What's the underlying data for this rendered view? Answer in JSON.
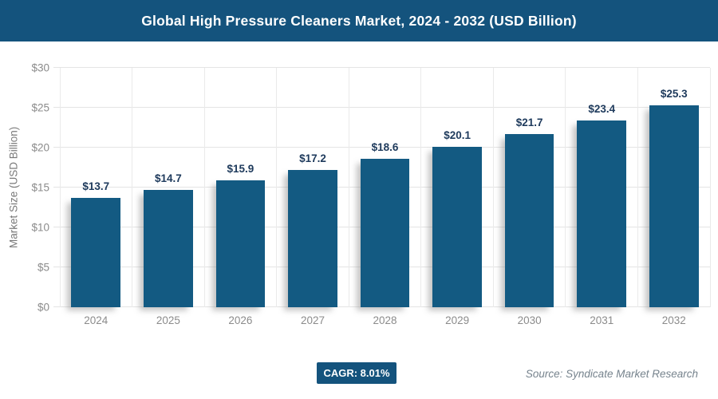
{
  "header": {
    "title": "Global High Pressure Cleaners Market, 2024 - 2032 (USD Billion)"
  },
  "chart_data": {
    "type": "bar",
    "title": "Global High Pressure Cleaners Market, 2024 - 2032 (USD Billion)",
    "categories": [
      "2024",
      "2025",
      "2026",
      "2027",
      "2028",
      "2029",
      "2030",
      "2031",
      "2032"
    ],
    "values": [
      13.7,
      14.7,
      15.9,
      17.2,
      18.6,
      20.1,
      21.7,
      23.4,
      25.3
    ],
    "value_labels": [
      "$13.7",
      "$14.7",
      "$15.9",
      "$17.2",
      "$18.6",
      "$20.1",
      "$21.7",
      "$23.4",
      "$25.3"
    ],
    "xlabel": "",
    "ylabel": "Market Size (USD Billion)",
    "ylim": [
      0,
      30
    ],
    "ytick_step": 5,
    "ytick_labels": [
      "$0",
      "$5",
      "$10",
      "$15",
      "$20",
      "$25",
      "$30"
    ],
    "grid": true,
    "legend_position": "none"
  },
  "footer": {
    "cagr_label": "CAGR: 8.01%",
    "source": "Source: Syndicate Market Research"
  },
  "colors": {
    "title_bar_bg": "#14537d",
    "bar": "#135a82",
    "value_label": "#1e3a5c",
    "axis_text": "#8b8b8b",
    "gridline": "#e4e4e4",
    "badge_bg": "#14537d",
    "source_text": "#76838d"
  }
}
